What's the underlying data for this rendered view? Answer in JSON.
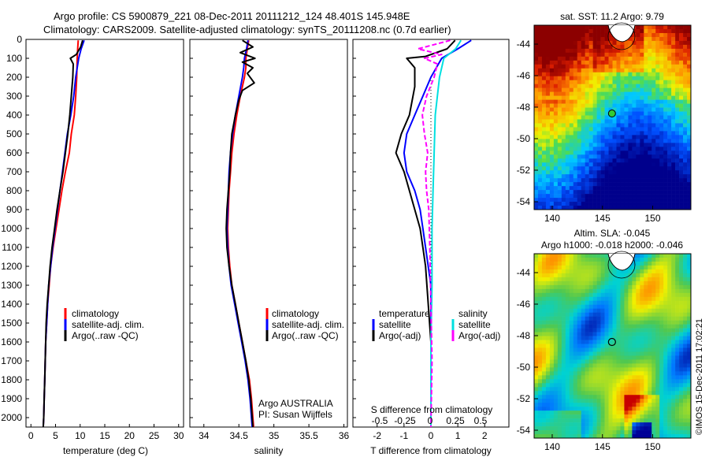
{
  "header": {
    "line1": "Argo profile: CS 5900879_221 08-Dec-2011 20111212_124 48.401S 145.948E",
    "line2": "Climatology: CARS2009. Satellite-adjusted climatology: synTS_20111208.nc (0.7d earlier)"
  },
  "colors": {
    "climatology": "#ff0000",
    "satellite": "#0000ff",
    "argo": "#000000",
    "sal_satellite": "#00e0e0",
    "sal_argo": "#ff00ff"
  },
  "chart_data": [
    {
      "type": "line",
      "id": "temperature-profile",
      "xlabel": "temperature (deg C)",
      "xlim": [
        -1,
        31
      ],
      "xticks": [
        0,
        5,
        10,
        15,
        20,
        25,
        30
      ],
      "ylim": [
        2050,
        0
      ],
      "yticks": [
        0,
        100,
        200,
        300,
        400,
        500,
        600,
        700,
        800,
        900,
        1000,
        1100,
        1200,
        1300,
        1400,
        1500,
        1600,
        1700,
        1800,
        1900,
        2000
      ],
      "legend": [
        "climatology",
        "satellite-adj. clim.",
        "Argo(..raw -QC)"
      ],
      "series": [
        {
          "name": "climatology",
          "color_key": "climatology",
          "points": [
            [
              9.6,
              5
            ],
            [
              9.5,
              50
            ],
            [
              9.4,
              100
            ],
            [
              9.3,
              200
            ],
            [
              9.1,
              300
            ],
            [
              8.8,
              400
            ],
            [
              8.2,
              500
            ],
            [
              7.8,
              600
            ],
            [
              7.0,
              700
            ],
            [
              6.3,
              800
            ],
            [
              5.7,
              900
            ],
            [
              5.1,
              1000
            ],
            [
              4.5,
              1100
            ],
            [
              4.0,
              1200
            ],
            [
              3.7,
              1300
            ],
            [
              3.4,
              1400
            ],
            [
              3.2,
              1500
            ],
            [
              3.0,
              1600
            ],
            [
              2.9,
              1700
            ],
            [
              2.8,
              1800
            ],
            [
              2.7,
              1900
            ],
            [
              2.6,
              2000
            ],
            [
              2.5,
              2050
            ]
          ]
        },
        {
          "name": "satellite-adj. clim.",
          "color_key": "satellite",
          "points": [
            [
              10.8,
              5
            ],
            [
              10.2,
              50
            ],
            [
              9.7,
              100
            ],
            [
              9.1,
              200
            ],
            [
              8.7,
              300
            ],
            [
              8.1,
              400
            ],
            [
              7.4,
              500
            ],
            [
              6.9,
              600
            ],
            [
              6.4,
              700
            ],
            [
              5.9,
              800
            ],
            [
              5.4,
              900
            ],
            [
              4.9,
              1000
            ],
            [
              4.4,
              1100
            ],
            [
              4.0,
              1200
            ],
            [
              3.6,
              1300
            ],
            [
              3.4,
              1400
            ],
            [
              3.2,
              1500
            ],
            [
              3.0,
              1600
            ],
            [
              2.9,
              1700
            ],
            [
              2.8,
              1800
            ],
            [
              2.7,
              1900
            ],
            [
              2.6,
              2000
            ],
            [
              2.5,
              2050
            ]
          ]
        },
        {
          "name": "Argo(..raw -QC)",
          "color_key": "argo",
          "points": [
            [
              10.5,
              5
            ],
            [
              10.1,
              40
            ],
            [
              9.2,
              80
            ],
            [
              8.0,
              100
            ],
            [
              8.6,
              130
            ],
            [
              8.5,
              200
            ],
            [
              8.2,
              300
            ],
            [
              7.9,
              400
            ],
            [
              7.5,
              500
            ],
            [
              7.0,
              600
            ],
            [
              6.5,
              700
            ],
            [
              5.9,
              800
            ],
            [
              5.3,
              900
            ],
            [
              4.8,
              1000
            ],
            [
              4.3,
              1100
            ],
            [
              3.9,
              1200
            ],
            [
              3.6,
              1300
            ],
            [
              3.3,
              1400
            ],
            [
              3.1,
              1500
            ],
            [
              3.0,
              1600
            ],
            [
              2.9,
              1700
            ],
            [
              2.8,
              1800
            ],
            [
              2.7,
              1900
            ],
            [
              2.6,
              2000
            ],
            [
              2.5,
              2050
            ]
          ]
        }
      ]
    },
    {
      "type": "line",
      "id": "salinity-profile",
      "xlabel": "salinity",
      "xlim": [
        33.8,
        36.05
      ],
      "xticks": [
        34,
        34.5,
        35,
        35.5,
        36
      ],
      "xticklabels": [
        "34",
        "34.5",
        "35",
        "35.5",
        "36"
      ],
      "ylim": [
        2050,
        0
      ],
      "legend": [
        "climatology",
        "satellite-adj. clim.",
        "Argo(..raw -QC)"
      ],
      "annotations": [
        "Argo AUSTRALIA",
        "PI: Susan Wijffels"
      ],
      "series": [
        {
          "name": "climatology",
          "color_key": "climatology",
          "points": [
            [
              34.64,
              5
            ],
            [
              34.62,
              50
            ],
            [
              34.6,
              100
            ],
            [
              34.6,
              150
            ],
            [
              34.58,
              200
            ],
            [
              34.52,
              300
            ],
            [
              34.47,
              400
            ],
            [
              34.43,
              500
            ],
            [
              34.4,
              600
            ],
            [
              34.38,
              700
            ],
            [
              34.36,
              800
            ],
            [
              34.35,
              900
            ],
            [
              34.34,
              1000
            ],
            [
              34.35,
              1100
            ],
            [
              34.37,
              1200
            ],
            [
              34.4,
              1300
            ],
            [
              34.45,
              1400
            ],
            [
              34.5,
              1500
            ],
            [
              34.55,
              1600
            ],
            [
              34.6,
              1700
            ],
            [
              34.65,
              1800
            ],
            [
              34.68,
              1900
            ],
            [
              34.7,
              2000
            ],
            [
              34.71,
              2050
            ]
          ]
        },
        {
          "name": "satellite-adj. clim.",
          "color_key": "satellite",
          "points": [
            [
              34.63,
              5
            ],
            [
              34.61,
              50
            ],
            [
              34.58,
              100
            ],
            [
              34.57,
              150
            ],
            [
              34.55,
              200
            ],
            [
              34.5,
              300
            ],
            [
              34.45,
              400
            ],
            [
              34.41,
              500
            ],
            [
              34.38,
              600
            ],
            [
              34.36,
              700
            ],
            [
              34.35,
              800
            ],
            [
              34.34,
              900
            ],
            [
              34.33,
              1000
            ],
            [
              34.34,
              1100
            ],
            [
              34.36,
              1200
            ],
            [
              34.39,
              1300
            ],
            [
              34.44,
              1400
            ],
            [
              34.49,
              1500
            ],
            [
              34.54,
              1600
            ],
            [
              34.59,
              1700
            ],
            [
              34.63,
              1800
            ],
            [
              34.66,
              1900
            ],
            [
              34.68,
              2000
            ],
            [
              34.69,
              2050
            ]
          ]
        },
        {
          "name": "Argo(..raw -QC)",
          "color_key": "argo",
          "points": [
            [
              34.55,
              5
            ],
            [
              34.7,
              40
            ],
            [
              34.52,
              70
            ],
            [
              34.73,
              100
            ],
            [
              34.55,
              120
            ],
            [
              34.7,
              150
            ],
            [
              34.62,
              180
            ],
            [
              34.72,
              230
            ],
            [
              34.55,
              270
            ],
            [
              34.5,
              320
            ],
            [
              34.45,
              400
            ],
            [
              34.4,
              500
            ],
            [
              34.38,
              600
            ],
            [
              34.37,
              700
            ],
            [
              34.35,
              800
            ],
            [
              34.33,
              900
            ],
            [
              34.32,
              1000
            ],
            [
              34.33,
              1100
            ],
            [
              34.36,
              1200
            ],
            [
              34.4,
              1300
            ],
            [
              34.45,
              1400
            ],
            [
              34.5,
              1500
            ],
            [
              34.55,
              1600
            ],
            [
              34.6,
              1700
            ],
            [
              34.64,
              1800
            ],
            [
              34.67,
              1900
            ],
            [
              34.69,
              2000
            ],
            [
              34.7,
              2050
            ]
          ]
        }
      ]
    },
    {
      "type": "line",
      "id": "difference-profile",
      "xlabel": "T difference from climatology",
      "top_label": "S difference from climatology",
      "xlim": [
        -2.9,
        2.9
      ],
      "xticks": [
        -2,
        -1,
        0,
        1,
        2
      ],
      "xticklabels": [
        "-2",
        "-1",
        "0",
        "1",
        "2"
      ],
      "s_ticks": [
        "-0.5",
        "-0.25",
        "0",
        "0.25",
        "0.5"
      ],
      "ylim": [
        2050,
        0
      ],
      "legend_titles": [
        "temperature",
        "salinity"
      ],
      "legend_t": [
        "satellite",
        "Argo(-adj)"
      ],
      "legend_s": [
        "satellite",
        "Argo(-adj)"
      ],
      "series": [
        {
          "name": "temperature satellite",
          "color_key": "satellite",
          "points": [
            [
              1.5,
              5
            ],
            [
              1.0,
              50
            ],
            [
              0.4,
              100
            ],
            [
              0.0,
              200
            ],
            [
              -0.3,
              300
            ],
            [
              -0.6,
              400
            ],
            [
              -0.9,
              500
            ],
            [
              -1.0,
              600
            ],
            [
              -0.9,
              700
            ],
            [
              -0.6,
              800
            ],
            [
              -0.4,
              900
            ],
            [
              -0.3,
              1000
            ],
            [
              -0.2,
              1100
            ],
            [
              -0.1,
              1200
            ],
            [
              0.0,
              1300
            ],
            [
              0.0,
              1500
            ],
            [
              0.0,
              1700
            ],
            [
              0.0,
              1900
            ],
            [
              0.0,
              2050
            ]
          ]
        },
        {
          "name": "temperature Argo(-adj)",
          "color_key": "argo",
          "points": [
            [
              0.9,
              5
            ],
            [
              0.6,
              50
            ],
            [
              -0.2,
              90
            ],
            [
              -0.9,
              100
            ],
            [
              -0.6,
              150
            ],
            [
              -0.6,
              250
            ],
            [
              -0.8,
              400
            ],
            [
              -1.1,
              500
            ],
            [
              -1.3,
              600
            ],
            [
              -1.0,
              700
            ],
            [
              -0.8,
              800
            ],
            [
              -0.6,
              900
            ],
            [
              -0.4,
              1000
            ],
            [
              -0.3,
              1100
            ],
            [
              -0.2,
              1200
            ],
            [
              -0.1,
              1400
            ],
            [
              0.0,
              1600
            ],
            [
              0.0,
              1800
            ],
            [
              0.0,
              2050
            ]
          ]
        },
        {
          "name": "salinity satellite",
          "color_key": "sal_satellite",
          "points": [
            [
              0.28,
              5
            ],
            [
              0.23,
              50
            ],
            [
              0.12,
              100
            ],
            [
              0.08,
              200
            ],
            [
              0.06,
              300
            ],
            [
              0.04,
              400
            ],
            [
              0.03,
              600
            ],
            [
              0.02,
              800
            ],
            [
              0.01,
              1000
            ],
            [
              0.01,
              1300
            ],
            [
              0.0,
              1600
            ],
            [
              0.0,
              2050
            ]
          ]
        },
        {
          "name": "salinity Argo(-adj)",
          "color_key": "sal_argo",
          "points": [
            [
              0.18,
              5
            ],
            [
              -0.12,
              50
            ],
            [
              0.1,
              80
            ],
            [
              -0.06,
              100
            ],
            [
              0.06,
              130
            ],
            [
              0.03,
              200
            ],
            [
              -0.04,
              300
            ],
            [
              -0.08,
              400
            ],
            [
              -0.06,
              500
            ],
            [
              -0.03,
              600
            ],
            [
              -0.05,
              700
            ],
            [
              -0.04,
              800
            ],
            [
              -0.02,
              900
            ],
            [
              -0.01,
              1100
            ],
            [
              0.0,
              1400
            ],
            [
              0.01,
              1700
            ],
            [
              0.0,
              2050
            ]
          ]
        }
      ]
    },
    {
      "type": "heatmap",
      "id": "sst-map",
      "title": "sat. SST: 11.2 Argo: 9.79",
      "xticks": [
        140,
        145,
        150
      ],
      "yticks": [
        -44,
        -46,
        -48,
        -50,
        -52,
        -54
      ],
      "ylim": [
        -54.5,
        -42.8
      ],
      "xlim": [
        138.2,
        153.8
      ],
      "marker": {
        "lon": 145.948,
        "lat": -48.401
      }
    },
    {
      "type": "heatmap",
      "id": "sla-map",
      "title": "Altim. SLA: -0.045",
      "subtitle": "Argo h1000: -0.018 h2000: -0.046",
      "xticks": [
        140,
        145,
        150
      ],
      "yticks": [
        -44,
        -46,
        -48,
        -50,
        -52,
        -54
      ],
      "ylim": [
        -54.5,
        -42.8
      ],
      "xlim": [
        138.2,
        153.8
      ],
      "marker": {
        "lon": 145.948,
        "lat": -48.401
      }
    }
  ],
  "credit": "©IMOS 15-Dec-2011 17:02:21"
}
